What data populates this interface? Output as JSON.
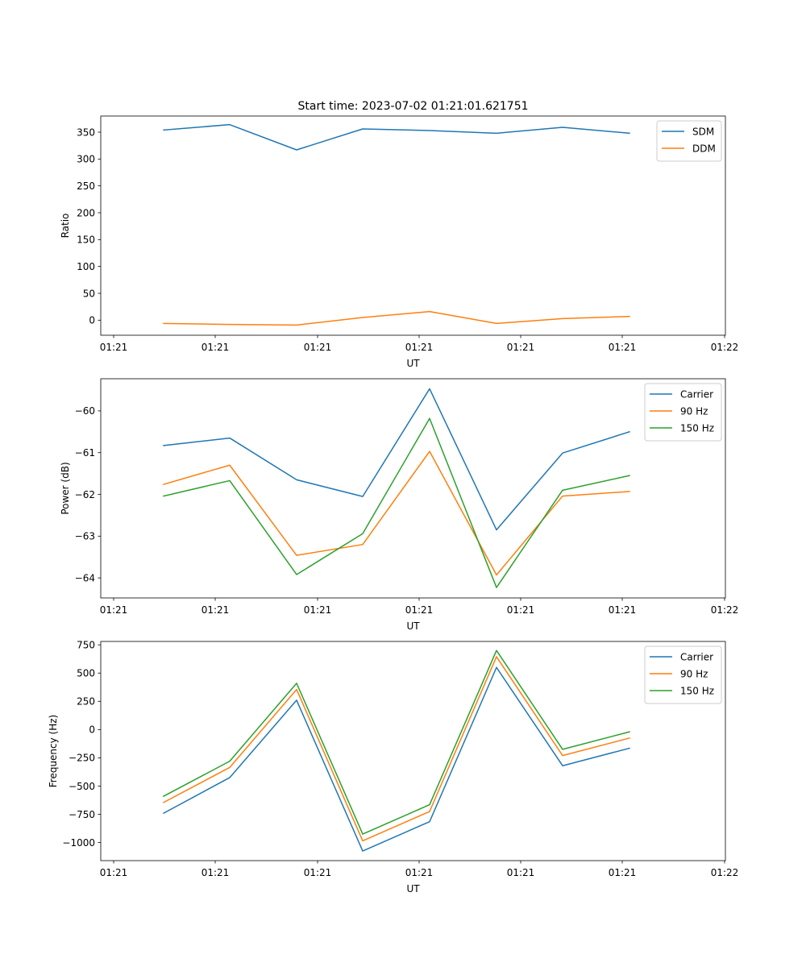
{
  "figure_title": "Start time: 2023-07-02 01:21:01.621751",
  "chart_data": [
    {
      "type": "line",
      "title": "Start time: 2023-07-02 01:21:01.621751",
      "xlabel": "UT",
      "ylabel": "Ratio",
      "x_tick_labels": [
        "01:21",
        "01:21",
        "01:21",
        "01:21",
        "01:21",
        "01:21",
        "01:22"
      ],
      "x_point_index": [
        0,
        1,
        2,
        3,
        4,
        5,
        6,
        7
      ],
      "ylim": [
        -28,
        380
      ],
      "yticks": [
        0,
        50,
        100,
        150,
        200,
        250,
        300,
        350
      ],
      "ytick_labels": [
        "0",
        "50",
        "100",
        "150",
        "200",
        "250",
        "300",
        "350"
      ],
      "legend_position": "upper-right",
      "series": [
        {
          "name": "SDM",
          "color": "#1f77b4",
          "values": [
            354,
            364,
            317,
            356,
            353,
            348,
            359,
            348
          ]
        },
        {
          "name": "DDM",
          "color": "#ff7f0e",
          "values": [
            -6,
            -8,
            -9,
            5,
            16,
            -6,
            3,
            7
          ]
        }
      ]
    },
    {
      "type": "line",
      "xlabel": "UT",
      "ylabel": "Power (dB)",
      "x_tick_labels": [
        "01:21",
        "01:21",
        "01:21",
        "01:21",
        "01:21",
        "01:21",
        "01:22"
      ],
      "x_point_index": [
        0,
        1,
        2,
        3,
        4,
        5,
        6,
        7
      ],
      "ylim": [
        -64.48,
        -59.23
      ],
      "yticks": [
        -64,
        -63,
        -62,
        -61,
        -60
      ],
      "ytick_labels": [
        "−64",
        "−63",
        "−62",
        "−61",
        "−60"
      ],
      "legend_position": "upper-right",
      "series": [
        {
          "name": "Carrier",
          "color": "#1f77b4",
          "values": [
            -60.83,
            -60.65,
            -61.65,
            -62.05,
            -59.47,
            -62.85,
            -61.01,
            -60.5
          ]
        },
        {
          "name": "90 Hz",
          "color": "#ff7f0e",
          "values": [
            -61.76,
            -61.3,
            -63.46,
            -63.2,
            -60.97,
            -63.93,
            -62.04,
            -61.93
          ]
        },
        {
          "name": "150 Hz",
          "color": "#2ca02c",
          "values": [
            -62.04,
            -61.67,
            -63.92,
            -62.94,
            -60.18,
            -64.23,
            -61.9,
            -61.55
          ]
        }
      ]
    },
    {
      "type": "line",
      "xlabel": "UT",
      "ylabel": "Frequency (Hz)",
      "x_tick_labels": [
        "01:21",
        "01:21",
        "01:21",
        "01:21",
        "01:21",
        "01:21",
        "01:22"
      ],
      "x_point_index": [
        0,
        1,
        2,
        3,
        4,
        5,
        6,
        7
      ],
      "ylim": [
        -1160,
        780
      ],
      "yticks": [
        -1000,
        -750,
        -500,
        -250,
        0,
        250,
        500,
        750
      ],
      "ytick_labels": [
        "−1000",
        "−750",
        "−500",
        "−250",
        "0",
        "250",
        "500",
        "750"
      ],
      "legend_position": "upper-right",
      "series": [
        {
          "name": "Carrier",
          "color": "#1f77b4",
          "values": [
            -740,
            -425,
            260,
            -1075,
            -815,
            550,
            -320,
            -165
          ]
        },
        {
          "name": "90 Hz",
          "color": "#ff7f0e",
          "values": [
            -645,
            -335,
            355,
            -985,
            -725,
            645,
            -230,
            -75
          ]
        },
        {
          "name": "150 Hz",
          "color": "#2ca02c",
          "values": [
            -590,
            -280,
            410,
            -925,
            -665,
            700,
            -175,
            -20
          ]
        }
      ]
    }
  ]
}
